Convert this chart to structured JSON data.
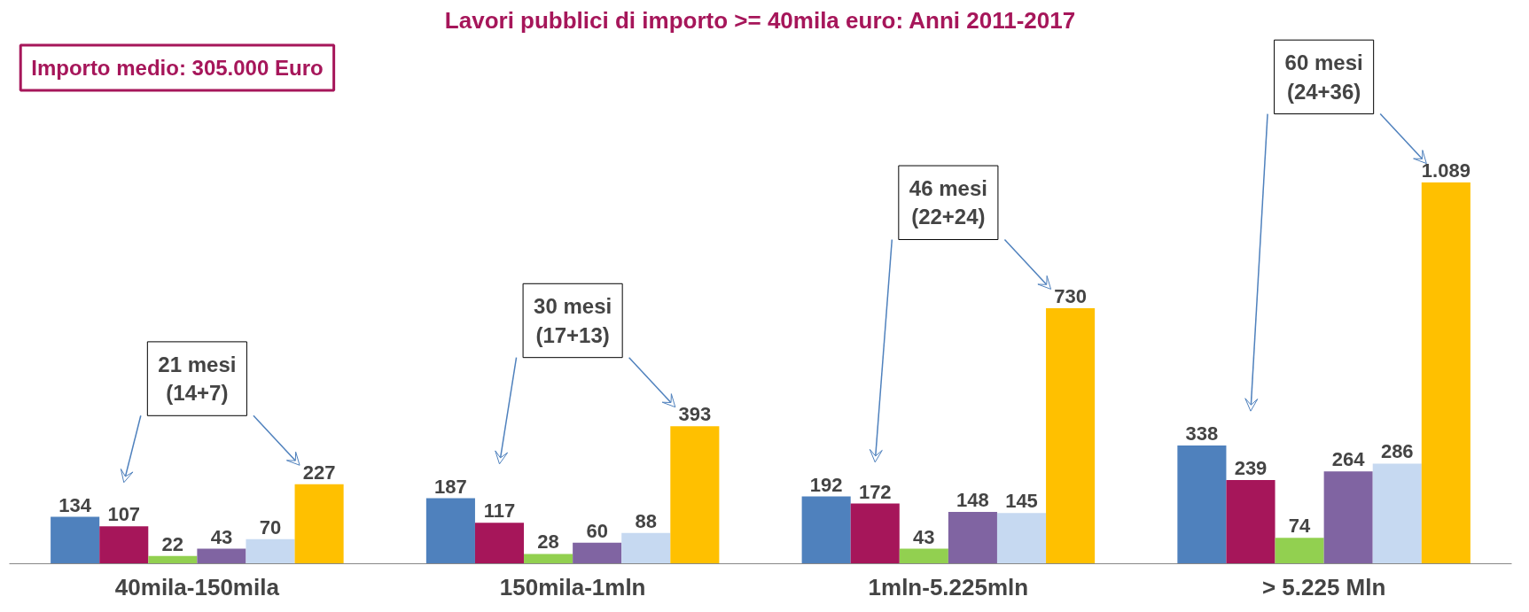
{
  "chart_data": {
    "type": "bar",
    "title": "Lavori pubblici di importo >= 40mila euro: Anni 2011-2017",
    "categories": [
      "40mila-150mila",
      "150mila-1mln",
      "1mln-5.225mln",
      "> 5.225 Mln"
    ],
    "series": [
      {
        "color": "#4f81bd",
        "values": [
          134,
          187,
          192,
          338
        ],
        "value_labels": [
          "134",
          "187",
          "192",
          "338"
        ]
      },
      {
        "color": "#a6165a",
        "values": [
          107,
          117,
          172,
          239
        ],
        "value_labels": [
          "107",
          "117",
          "172",
          "239"
        ]
      },
      {
        "color": "#92d050",
        "values": [
          22,
          28,
          43,
          74
        ],
        "value_labels": [
          "22",
          "28",
          "43",
          "74"
        ]
      },
      {
        "color": "#8064a2",
        "values": [
          43,
          60,
          148,
          264
        ],
        "value_labels": [
          "43",
          "60",
          "148",
          "264"
        ]
      },
      {
        "color": "#c6d9f1",
        "values": [
          70,
          88,
          145,
          286
        ],
        "value_labels": [
          "70",
          "88",
          "145",
          "286"
        ]
      },
      {
        "color": "#ffc000",
        "values": [
          227,
          393,
          730,
          1089
        ],
        "value_labels": [
          "227",
          "393",
          "730",
          "1.089"
        ]
      }
    ],
    "annotations": [
      "Importo medio: 305.000 Euro",
      "21 mesi\n(14+7)",
      "30 mesi\n(17+13)",
      "46 mesi\n(22+24)",
      "60 mesi\n(24+36)"
    ],
    "grid": false
  }
}
